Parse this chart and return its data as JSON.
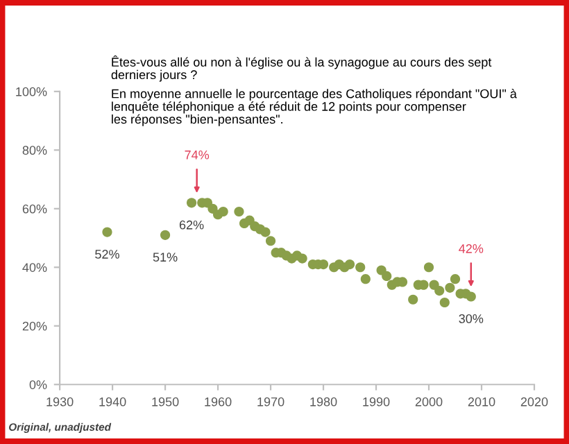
{
  "chart_data": {
    "type": "scatter",
    "title": "Êtes-vous allé ou non à l'église ou à la synagogue au cours des sept\nderniers jours ?",
    "subtitle": "En moyenne annuelle le pourcentage des Catholiques répondant \"OUI\" à\nlenquête téléphonique a été réduit de 12 points pour compenser\nles réponses \"bien-pensantes\".",
    "series": [
      {
        "color": "#8a9f4a",
        "x": [
          1939,
          1950,
          1955,
          1957,
          1958,
          1959,
          1960,
          1961,
          1964,
          1965,
          1966,
          1967,
          1968,
          1969,
          1970,
          1971,
          1972,
          1973,
          1974,
          1975,
          1976,
          1978,
          1979,
          1980,
          1982,
          1983,
          1984,
          1985,
          1987,
          1988,
          1991,
          1992,
          1993,
          1994,
          1995,
          1997,
          1998,
          1999,
          2000,
          2001,
          2002,
          2003,
          2004,
          2005,
          2006,
          2007,
          2008
        ],
        "values": [
          52,
          51,
          62,
          62,
          62,
          60,
          58,
          59,
          59,
          55,
          56,
          54,
          53,
          52,
          49,
          45,
          45,
          44,
          43,
          44,
          43,
          41,
          41,
          41,
          40,
          41,
          40,
          41,
          40,
          36,
          39,
          37,
          34,
          35,
          35,
          29,
          34,
          34,
          40,
          34,
          32,
          28,
          33,
          36,
          31,
          31,
          30
        ],
        "value_labels": [
          "52%",
          "51%",
          "62%",
          null,
          null,
          null,
          null,
          null,
          null,
          null,
          null,
          null,
          null,
          null,
          null,
          null,
          null,
          null,
          null,
          null,
          null,
          null,
          null,
          null,
          null,
          null,
          null,
          null,
          null,
          null,
          null,
          null,
          null,
          null,
          null,
          null,
          null,
          null,
          null,
          null,
          null,
          null,
          null,
          null,
          null,
          null,
          "30%"
        ]
      }
    ],
    "marker": "circle",
    "xlim": [
      1930,
      2020
    ],
    "xticks": [
      1930,
      1940,
      1950,
      1960,
      1970,
      1980,
      1990,
      2000,
      2010,
      2020
    ],
    "ylim": [
      0,
      100
    ],
    "yticks": [
      {
        "value": 0,
        "label": "0%"
      },
      {
        "value": 20,
        "label": "20%"
      },
      {
        "value": 40,
        "label": "40%"
      },
      {
        "value": 60,
        "label": "60%"
      },
      {
        "value": 80,
        "label": "80%"
      },
      {
        "value": 100,
        "label": "100%"
      }
    ],
    "grid": false,
    "annotations": [
      {
        "text": "74%",
        "x": 1956,
        "y": 62
      },
      {
        "text": "42%",
        "x": 2008,
        "y": 30
      },
      "Original, unadjusted"
    ]
  }
}
